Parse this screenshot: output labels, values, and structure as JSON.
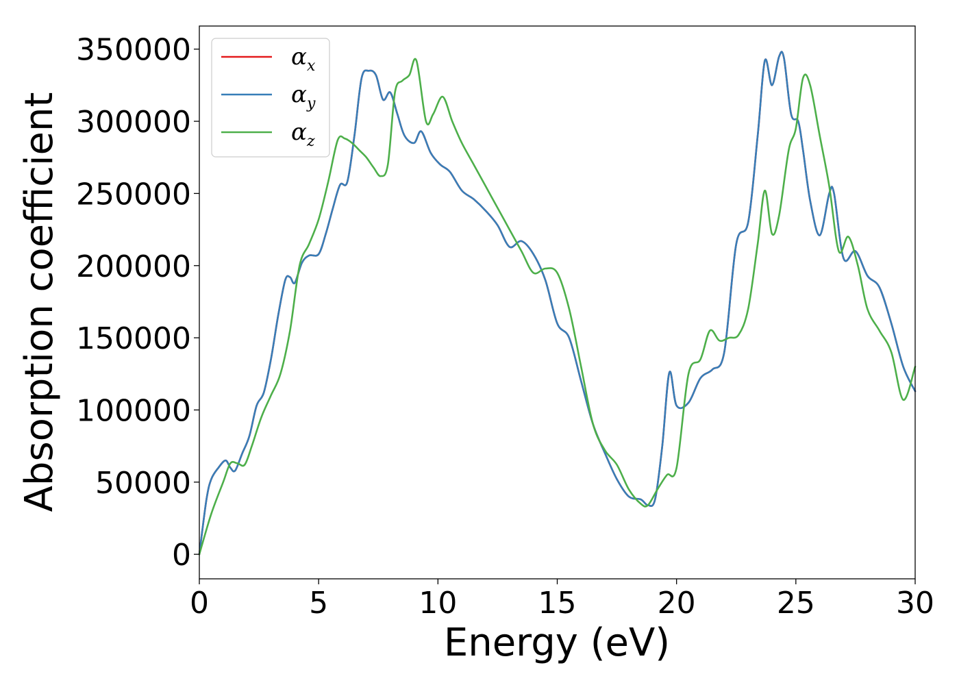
{
  "chart_data": {
    "type": "line",
    "xlabel": "Energy (eV)",
    "ylabel": "Absorption coefficient",
    "xlim": [
      0,
      30
    ],
    "ylim": [
      -17000,
      366000
    ],
    "xticks": [
      "0",
      "5",
      "10",
      "15",
      "20",
      "25",
      "30"
    ],
    "yticks": [
      "0",
      "50000",
      "100000",
      "150000",
      "200000",
      "250000",
      "300000",
      "350000"
    ],
    "grid": false,
    "legend_position": "top-left",
    "series": [
      {
        "name": "αx",
        "base": "α",
        "sub": "x",
        "color": "#e41a1c",
        "x": [
          0,
          0.3,
          0.5,
          0.8,
          1.1,
          1.3,
          1.5,
          1.8,
          2.1,
          2.4,
          2.7,
          3.0,
          3.3,
          3.6,
          3.8,
          4.0,
          4.3,
          4.6,
          5.0,
          5.3,
          5.6,
          5.9,
          6.2,
          6.5,
          6.8,
          7.1,
          7.4,
          7.7,
          8.0,
          8.3,
          8.6,
          9.0,
          9.3,
          9.7,
          10.1,
          10.5,
          11.0,
          11.5,
          12.0,
          12.5,
          13.0,
          13.5,
          14.0,
          14.5,
          15.0,
          15.5,
          16.0,
          16.5,
          17.0,
          17.5,
          18.0,
          18.5,
          18.8,
          19.1,
          19.4,
          19.7,
          20.0,
          20.5,
          21.0,
          21.5,
          22.0,
          22.5,
          23.0,
          23.4,
          23.7,
          24.0,
          24.3,
          24.5,
          24.8,
          25.1,
          25.3,
          25.6,
          26.0,
          26.4,
          26.6,
          27.0,
          27.5,
          28.0,
          28.5,
          29.0,
          29.5,
          30.0
        ],
        "y": [
          0,
          38000,
          52000,
          60000,
          65000,
          60000,
          58000,
          70000,
          82000,
          103000,
          112000,
          135000,
          165000,
          190000,
          192000,
          188000,
          202000,
          207000,
          208000,
          222000,
          240000,
          256000,
          258000,
          290000,
          330000,
          335000,
          332000,
          315000,
          320000,
          305000,
          290000,
          285000,
          293000,
          278000,
          270000,
          265000,
          252000,
          246000,
          238000,
          228000,
          213000,
          217000,
          208000,
          190000,
          160000,
          150000,
          120000,
          90000,
          70000,
          52000,
          40000,
          38000,
          34000,
          38000,
          75000,
          126000,
          103000,
          105000,
          122000,
          128000,
          140000,
          215000,
          230000,
          290000,
          342000,
          325000,
          345000,
          344000,
          305000,
          300000,
          280000,
          245000,
          221000,
          250000,
          250000,
          205000,
          210000,
          193000,
          185000,
          160000,
          130000,
          113000
        ]
      },
      {
        "name": "αy",
        "base": "α",
        "sub": "y",
        "color": "#377eb8",
        "x": [
          0,
          0.3,
          0.5,
          0.8,
          1.1,
          1.3,
          1.5,
          1.8,
          2.1,
          2.4,
          2.7,
          3.0,
          3.3,
          3.6,
          3.8,
          4.0,
          4.3,
          4.6,
          5.0,
          5.3,
          5.6,
          5.9,
          6.2,
          6.5,
          6.8,
          7.1,
          7.4,
          7.7,
          8.0,
          8.3,
          8.6,
          9.0,
          9.3,
          9.7,
          10.1,
          10.5,
          11.0,
          11.5,
          12.0,
          12.5,
          13.0,
          13.5,
          14.0,
          14.5,
          15.0,
          15.5,
          16.0,
          16.5,
          17.0,
          17.5,
          18.0,
          18.5,
          18.8,
          19.1,
          19.4,
          19.7,
          20.0,
          20.5,
          21.0,
          21.5,
          22.0,
          22.5,
          23.0,
          23.4,
          23.7,
          24.0,
          24.3,
          24.5,
          24.8,
          25.1,
          25.3,
          25.6,
          26.0,
          26.4,
          26.6,
          27.0,
          27.5,
          28.0,
          28.5,
          29.0,
          29.5,
          30.0
        ],
        "y": [
          0,
          38000,
          52000,
          60000,
          65000,
          60000,
          58000,
          70000,
          82000,
          103000,
          112000,
          135000,
          165000,
          190000,
          192000,
          188000,
          202000,
          207000,
          208000,
          222000,
          240000,
          256000,
          258000,
          290000,
          330000,
          335000,
          332000,
          315000,
          320000,
          305000,
          290000,
          285000,
          293000,
          278000,
          270000,
          265000,
          252000,
          246000,
          238000,
          228000,
          213000,
          217000,
          208000,
          190000,
          160000,
          150000,
          120000,
          90000,
          70000,
          52000,
          40000,
          38000,
          34000,
          38000,
          75000,
          126000,
          103000,
          105000,
          122000,
          128000,
          140000,
          215000,
          230000,
          290000,
          342000,
          325000,
          345000,
          344000,
          305000,
          300000,
          280000,
          245000,
          221000,
          250000,
          250000,
          205000,
          210000,
          193000,
          185000,
          160000,
          130000,
          113000
        ]
      },
      {
        "name": "αz",
        "base": "α",
        "sub": "z",
        "color": "#4daf4a",
        "x": [
          0,
          0.5,
          1.0,
          1.3,
          1.6,
          1.9,
          2.2,
          2.6,
          3.0,
          3.4,
          3.8,
          4.2,
          4.6,
          5.0,
          5.4,
          5.8,
          6.1,
          6.4,
          6.7,
          7.0,
          7.3,
          7.6,
          7.9,
          8.2,
          8.5,
          8.8,
          9.1,
          9.5,
          9.8,
          10.2,
          10.6,
          11.0,
          11.5,
          12.0,
          12.5,
          13.0,
          13.5,
          14.0,
          14.5,
          15.0,
          15.5,
          16.0,
          16.5,
          17.0,
          17.5,
          18.0,
          18.5,
          18.8,
          19.2,
          19.6,
          20.0,
          20.5,
          21.0,
          21.4,
          21.8,
          22.2,
          22.6,
          23.0,
          23.4,
          23.7,
          24.0,
          24.3,
          24.7,
          25.0,
          25.3,
          25.6,
          26.0,
          26.4,
          26.8,
          27.2,
          27.6,
          28.0,
          28.5,
          29.0,
          29.5,
          30.0
        ],
        "y": [
          0,
          28000,
          50000,
          63000,
          63000,
          62000,
          75000,
          95000,
          110000,
          125000,
          155000,
          200000,
          215000,
          232000,
          258000,
          287000,
          288000,
          285000,
          280000,
          275000,
          268000,
          262000,
          270000,
          320000,
          328000,
          332000,
          342000,
          300000,
          305000,
          317000,
          300000,
          285000,
          270000,
          255000,
          240000,
          225000,
          210000,
          195000,
          198000,
          195000,
          170000,
          130000,
          90000,
          72000,
          62000,
          45000,
          35000,
          34000,
          45000,
          55000,
          60000,
          125000,
          135000,
          155000,
          148000,
          150000,
          152000,
          170000,
          215000,
          252000,
          222000,
          235000,
          280000,
          295000,
          330000,
          325000,
          290000,
          255000,
          210000,
          220000,
          200000,
          170000,
          155000,
          140000,
          107000,
          130000
        ]
      }
    ]
  }
}
